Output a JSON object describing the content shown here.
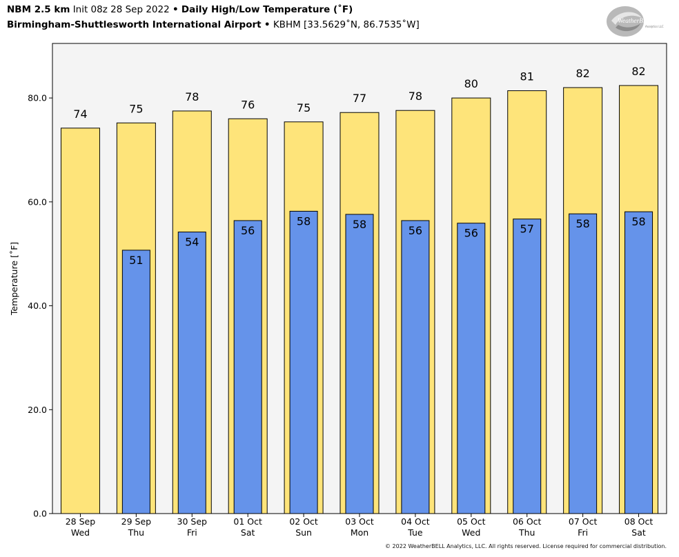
{
  "header": {
    "model": "NBM 2.5 km",
    "init": "Init 08z 28 Sep 2022",
    "sep1": "•",
    "product": "Daily High/Low Temperature (˚F)",
    "station": "Birmingham-Shuttlesworth International Airport",
    "sep2": "•",
    "coords": "KBHM [33.5629˚N, 86.7535˚W]"
  },
  "logo": {
    "text_main": "WeatherBELL",
    "text_sub": "Analytics LLC"
  },
  "footer": "© 2022 WeatherBELL Analytics, LLC. All rights reserved. License required for commercial distribution.",
  "colors": {
    "high": "#fee47a",
    "low": "#6593ea",
    "plot_bg": "#f4f4f4",
    "border": "#000000"
  },
  "chart_data": {
    "type": "bar",
    "title": "Daily High/Low Temperature (˚F)",
    "ylabel": "Temperature [˚F]",
    "ylim": [
      0,
      90.5
    ],
    "yticks": [
      "0.0",
      "20.0",
      "40.0",
      "60.0",
      "80.0"
    ],
    "ytick_values": [
      0,
      20,
      40,
      60,
      80
    ],
    "categories": [
      {
        "date": "28 Sep",
        "day": "Wed"
      },
      {
        "date": "29 Sep",
        "day": "Thu"
      },
      {
        "date": "30 Sep",
        "day": "Fri"
      },
      {
        "date": "01 Oct",
        "day": "Sat"
      },
      {
        "date": "02 Oct",
        "day": "Sun"
      },
      {
        "date": "03 Oct",
        "day": "Mon"
      },
      {
        "date": "04 Oct",
        "day": "Tue"
      },
      {
        "date": "05 Oct",
        "day": "Wed"
      },
      {
        "date": "06 Oct",
        "day": "Thu"
      },
      {
        "date": "07 Oct",
        "day": "Fri"
      },
      {
        "date": "08 Oct",
        "day": "Sat"
      }
    ],
    "series": [
      {
        "name": "High",
        "values": [
          74.2,
          75.2,
          77.5,
          76.0,
          75.4,
          77.2,
          77.6,
          80.0,
          81.4,
          82.0,
          82.4
        ],
        "labels": [
          "74",
          "75",
          "78",
          "76",
          "75",
          "77",
          "78",
          "80",
          "81",
          "82",
          "82"
        ]
      },
      {
        "name": "Low",
        "values": [
          null,
          50.7,
          54.2,
          56.4,
          58.2,
          57.6,
          56.4,
          55.9,
          56.7,
          57.7,
          58.1
        ],
        "labels": [
          "",
          "51",
          "54",
          "56",
          "58",
          "58",
          "56",
          "56",
          "57",
          "58",
          "58"
        ]
      }
    ],
    "grid": false,
    "legend": "none"
  }
}
